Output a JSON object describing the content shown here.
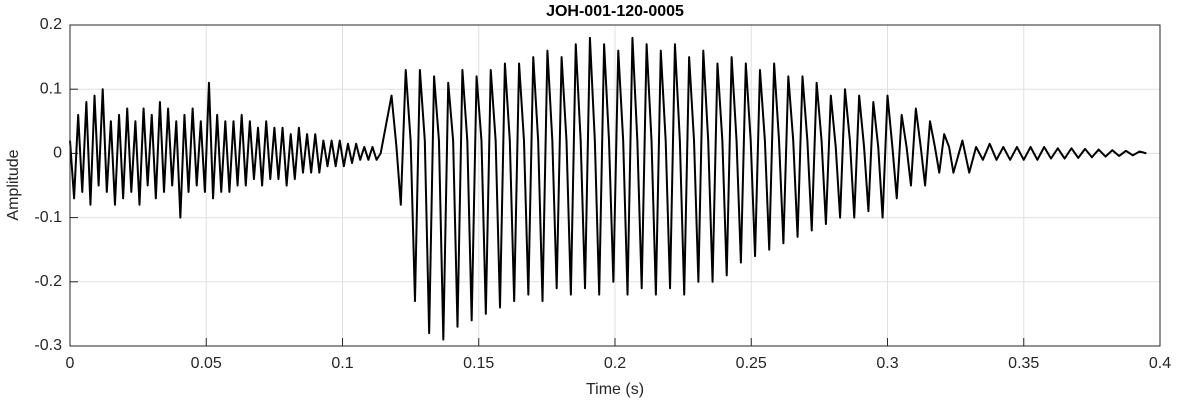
{
  "chart_data": {
    "type": "line",
    "title": "JOH-001-120-0005",
    "x_label": "Time (s)",
    "y_label": "Amplitude",
    "xlim": [
      0,
      0.4
    ],
    "ylim": [
      -0.3,
      0.2
    ],
    "xticks": [
      0,
      0.05,
      0.1,
      0.15,
      0.2,
      0.25,
      0.3,
      0.35,
      0.4
    ],
    "yticks": [
      -0.3,
      -0.2,
      -0.1,
      0,
      0.1,
      0.2
    ],
    "grid": true,
    "color": "#000000",
    "x": [
      0,
      0.0015,
      0.003,
      0.0045,
      0.006,
      0.0075,
      0.009,
      0.0105,
      0.012,
      0.0135,
      0.015,
      0.0165,
      0.018,
      0.0195,
      0.021,
      0.0225,
      0.024,
      0.0255,
      0.027,
      0.0285,
      0.03,
      0.0315,
      0.033,
      0.0345,
      0.036,
      0.0375,
      0.039,
      0.0405,
      0.042,
      0.0435,
      0.045,
      0.0465,
      0.048,
      0.0495,
      0.051,
      0.0525,
      0.054,
      0.0555,
      0.057,
      0.0585,
      0.06,
      0.0615,
      0.063,
      0.0645,
      0.066,
      0.0675,
      0.069,
      0.0705,
      0.072,
      0.0735,
      0.075,
      0.0765,
      0.078,
      0.0795,
      0.081,
      0.0825,
      0.084,
      0.0855,
      0.087,
      0.0885,
      0.09,
      0.0915,
      0.093,
      0.0945,
      0.096,
      0.0975,
      0.099,
      0.1005,
      0.102,
      0.1035,
      0.105,
      0.1065,
      0.108,
      0.1095,
      0.111,
      0.1125,
      0.114,
      0.118,
      0.1198,
      0.1214,
      0.1232,
      0.125,
      0.1266,
      0.1284,
      0.1302,
      0.1318,
      0.1336,
      0.1354,
      0.137,
      0.1388,
      0.1406,
      0.1422,
      0.144,
      0.1458,
      0.1474,
      0.1492,
      0.151,
      0.1526,
      0.1544,
      0.1562,
      0.1578,
      0.1596,
      0.1614,
      0.163,
      0.1648,
      0.1666,
      0.1682,
      0.17,
      0.1718,
      0.1734,
      0.1752,
      0.177,
      0.1786,
      0.1804,
      0.1822,
      0.1838,
      0.1856,
      0.1874,
      0.189,
      0.1908,
      0.1926,
      0.1942,
      0.196,
      0.1978,
      0.1994,
      0.2012,
      0.203,
      0.2046,
      0.2064,
      0.2082,
      0.2098,
      0.2116,
      0.2134,
      0.215,
      0.2168,
      0.2186,
      0.2202,
      0.222,
      0.2238,
      0.2254,
      0.2272,
      0.229,
      0.2306,
      0.2324,
      0.2342,
      0.2358,
      0.2376,
      0.2394,
      0.241,
      0.2428,
      0.2446,
      0.2462,
      0.248,
      0.2498,
      0.2514,
      0.2532,
      0.255,
      0.2566,
      0.2584,
      0.2602,
      0.2618,
      0.2636,
      0.2654,
      0.267,
      0.2688,
      0.2706,
      0.2722,
      0.274,
      0.2758,
      0.2774,
      0.2792,
      0.281,
      0.2826,
      0.2844,
      0.2862,
      0.2878,
      0.2896,
      0.2914,
      0.293,
      0.2948,
      0.2966,
      0.2982,
      0.3,
      0.3018,
      0.3034,
      0.3052,
      0.307,
      0.3086,
      0.3104,
      0.3122,
      0.3138,
      0.3156,
      0.3174,
      0.319,
      0.3208,
      0.3226,
      0.3242,
      0.3275,
      0.33,
      0.3325,
      0.335,
      0.3375,
      0.34,
      0.3425,
      0.345,
      0.3475,
      0.35,
      0.3525,
      0.355,
      0.3575,
      0.36,
      0.3625,
      0.365,
      0.3675,
      0.37,
      0.3725,
      0.375,
      0.3775,
      0.38,
      0.3825,
      0.385,
      0.3875,
      0.39,
      0.3925,
      0.395
    ],
    "values": [
      0.02,
      -0.07,
      0.06,
      -0.06,
      0.08,
      -0.08,
      0.09,
      -0.05,
      0.1,
      -0.06,
      0.05,
      -0.08,
      0.06,
      -0.07,
      0.07,
      -0.06,
      0.05,
      -0.08,
      0.07,
      -0.05,
      0.06,
      -0.07,
      0.08,
      -0.06,
      0.07,
      -0.05,
      0.05,
      -0.1,
      0.06,
      -0.06,
      0.07,
      -0.05,
      0.05,
      -0.06,
      0.11,
      -0.07,
      0.06,
      -0.06,
      0.05,
      -0.06,
      0.05,
      -0.05,
      0.06,
      -0.05,
      0.05,
      -0.04,
      0.04,
      -0.05,
      0.05,
      -0.04,
      0.04,
      -0.04,
      0.04,
      -0.05,
      0.03,
      -0.04,
      0.04,
      -0.03,
      0.03,
      -0.03,
      0.03,
      -0.03,
      0.02,
      -0.02,
      0.02,
      -0.02,
      0.02,
      -0.02,
      0.015,
      -0.015,
      0.015,
      -0.01,
      0.01,
      -0.01,
      0.01,
      -0.01,
      0,
      0.09,
      0.01,
      -0.08,
      0.13,
      0.02,
      -0.23,
      0.13,
      0.02,
      -0.28,
      0.12,
      0.02,
      -0.29,
      0.11,
      0.02,
      -0.27,
      0.13,
      0.02,
      -0.26,
      0.12,
      0.02,
      -0.25,
      0.13,
      0.02,
      -0.24,
      0.14,
      0.02,
      -0.23,
      0.14,
      0.02,
      -0.22,
      0.15,
      0.02,
      -0.23,
      0.16,
      0.02,
      -0.21,
      0.15,
      0.02,
      -0.22,
      0.17,
      0.02,
      -0.21,
      0.18,
      0.02,
      -0.22,
      0.17,
      0.02,
      -0.2,
      0.16,
      0.02,
      -0.22,
      0.18,
      0.02,
      -0.21,
      0.17,
      0.02,
      -0.22,
      0.16,
      0.02,
      -0.21,
      0.17,
      0.02,
      -0.22,
      0.15,
      0.02,
      -0.2,
      0.16,
      0.02,
      -0.2,
      0.14,
      0.02,
      -0.19,
      0.15,
      0.02,
      -0.17,
      0.14,
      0.02,
      -0.16,
      0.13,
      0.02,
      -0.15,
      0.14,
      0.02,
      -0.14,
      0.12,
      0.02,
      -0.13,
      0.12,
      0.02,
      -0.12,
      0.11,
      0.02,
      -0.11,
      0.09,
      0.01,
      -0.1,
      0.1,
      0.02,
      -0.1,
      0.09,
      0.01,
      -0.09,
      0.08,
      0.01,
      -0.1,
      0.09,
      0.01,
      -0.07,
      0.06,
      0.01,
      -0.05,
      0.07,
      0.01,
      -0.05,
      0.05,
      0.01,
      -0.03,
      0.03,
      0.01,
      -0.03,
      0.02,
      -0.03,
      0.01,
      -0.01,
      0.015,
      -0.01,
      0.01,
      -0.01,
      0.01,
      -0.01,
      0.01,
      -0.01,
      0.01,
      -0.008,
      0.008,
      -0.008,
      0.008,
      -0.007,
      0.007,
      -0.006,
      0.006,
      -0.005,
      0.005,
      -0.004,
      0.004,
      -0.003,
      0.003,
      0
    ]
  }
}
